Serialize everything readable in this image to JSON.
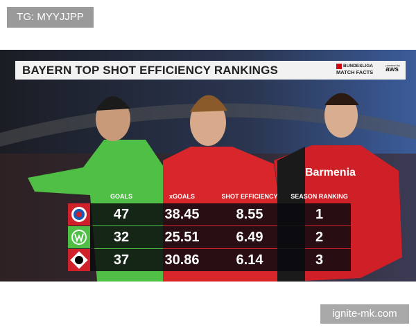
{
  "watermark_top": "TG: MYYJJPP",
  "title": "BAYERN TOP SHOT EFFICIENCY RANKINGS",
  "logo": {
    "line1": "BUNDESLIGA",
    "line2": "MATCH FACTS",
    "powered": "powered by",
    "brand": "aws"
  },
  "sponsor": "Barmenia",
  "table": {
    "columns": [
      "GOALS",
      "xGOALS",
      "SHOT EFFICIENCY",
      "SEASON RANKING"
    ],
    "rows": [
      [
        47,
        38.45,
        8.55,
        1
      ],
      [
        32,
        25.51,
        6.49,
        2
      ],
      [
        37,
        30.86,
        6.14,
        3
      ]
    ]
  },
  "watermark_bottom": "ignite-mk.com"
}
